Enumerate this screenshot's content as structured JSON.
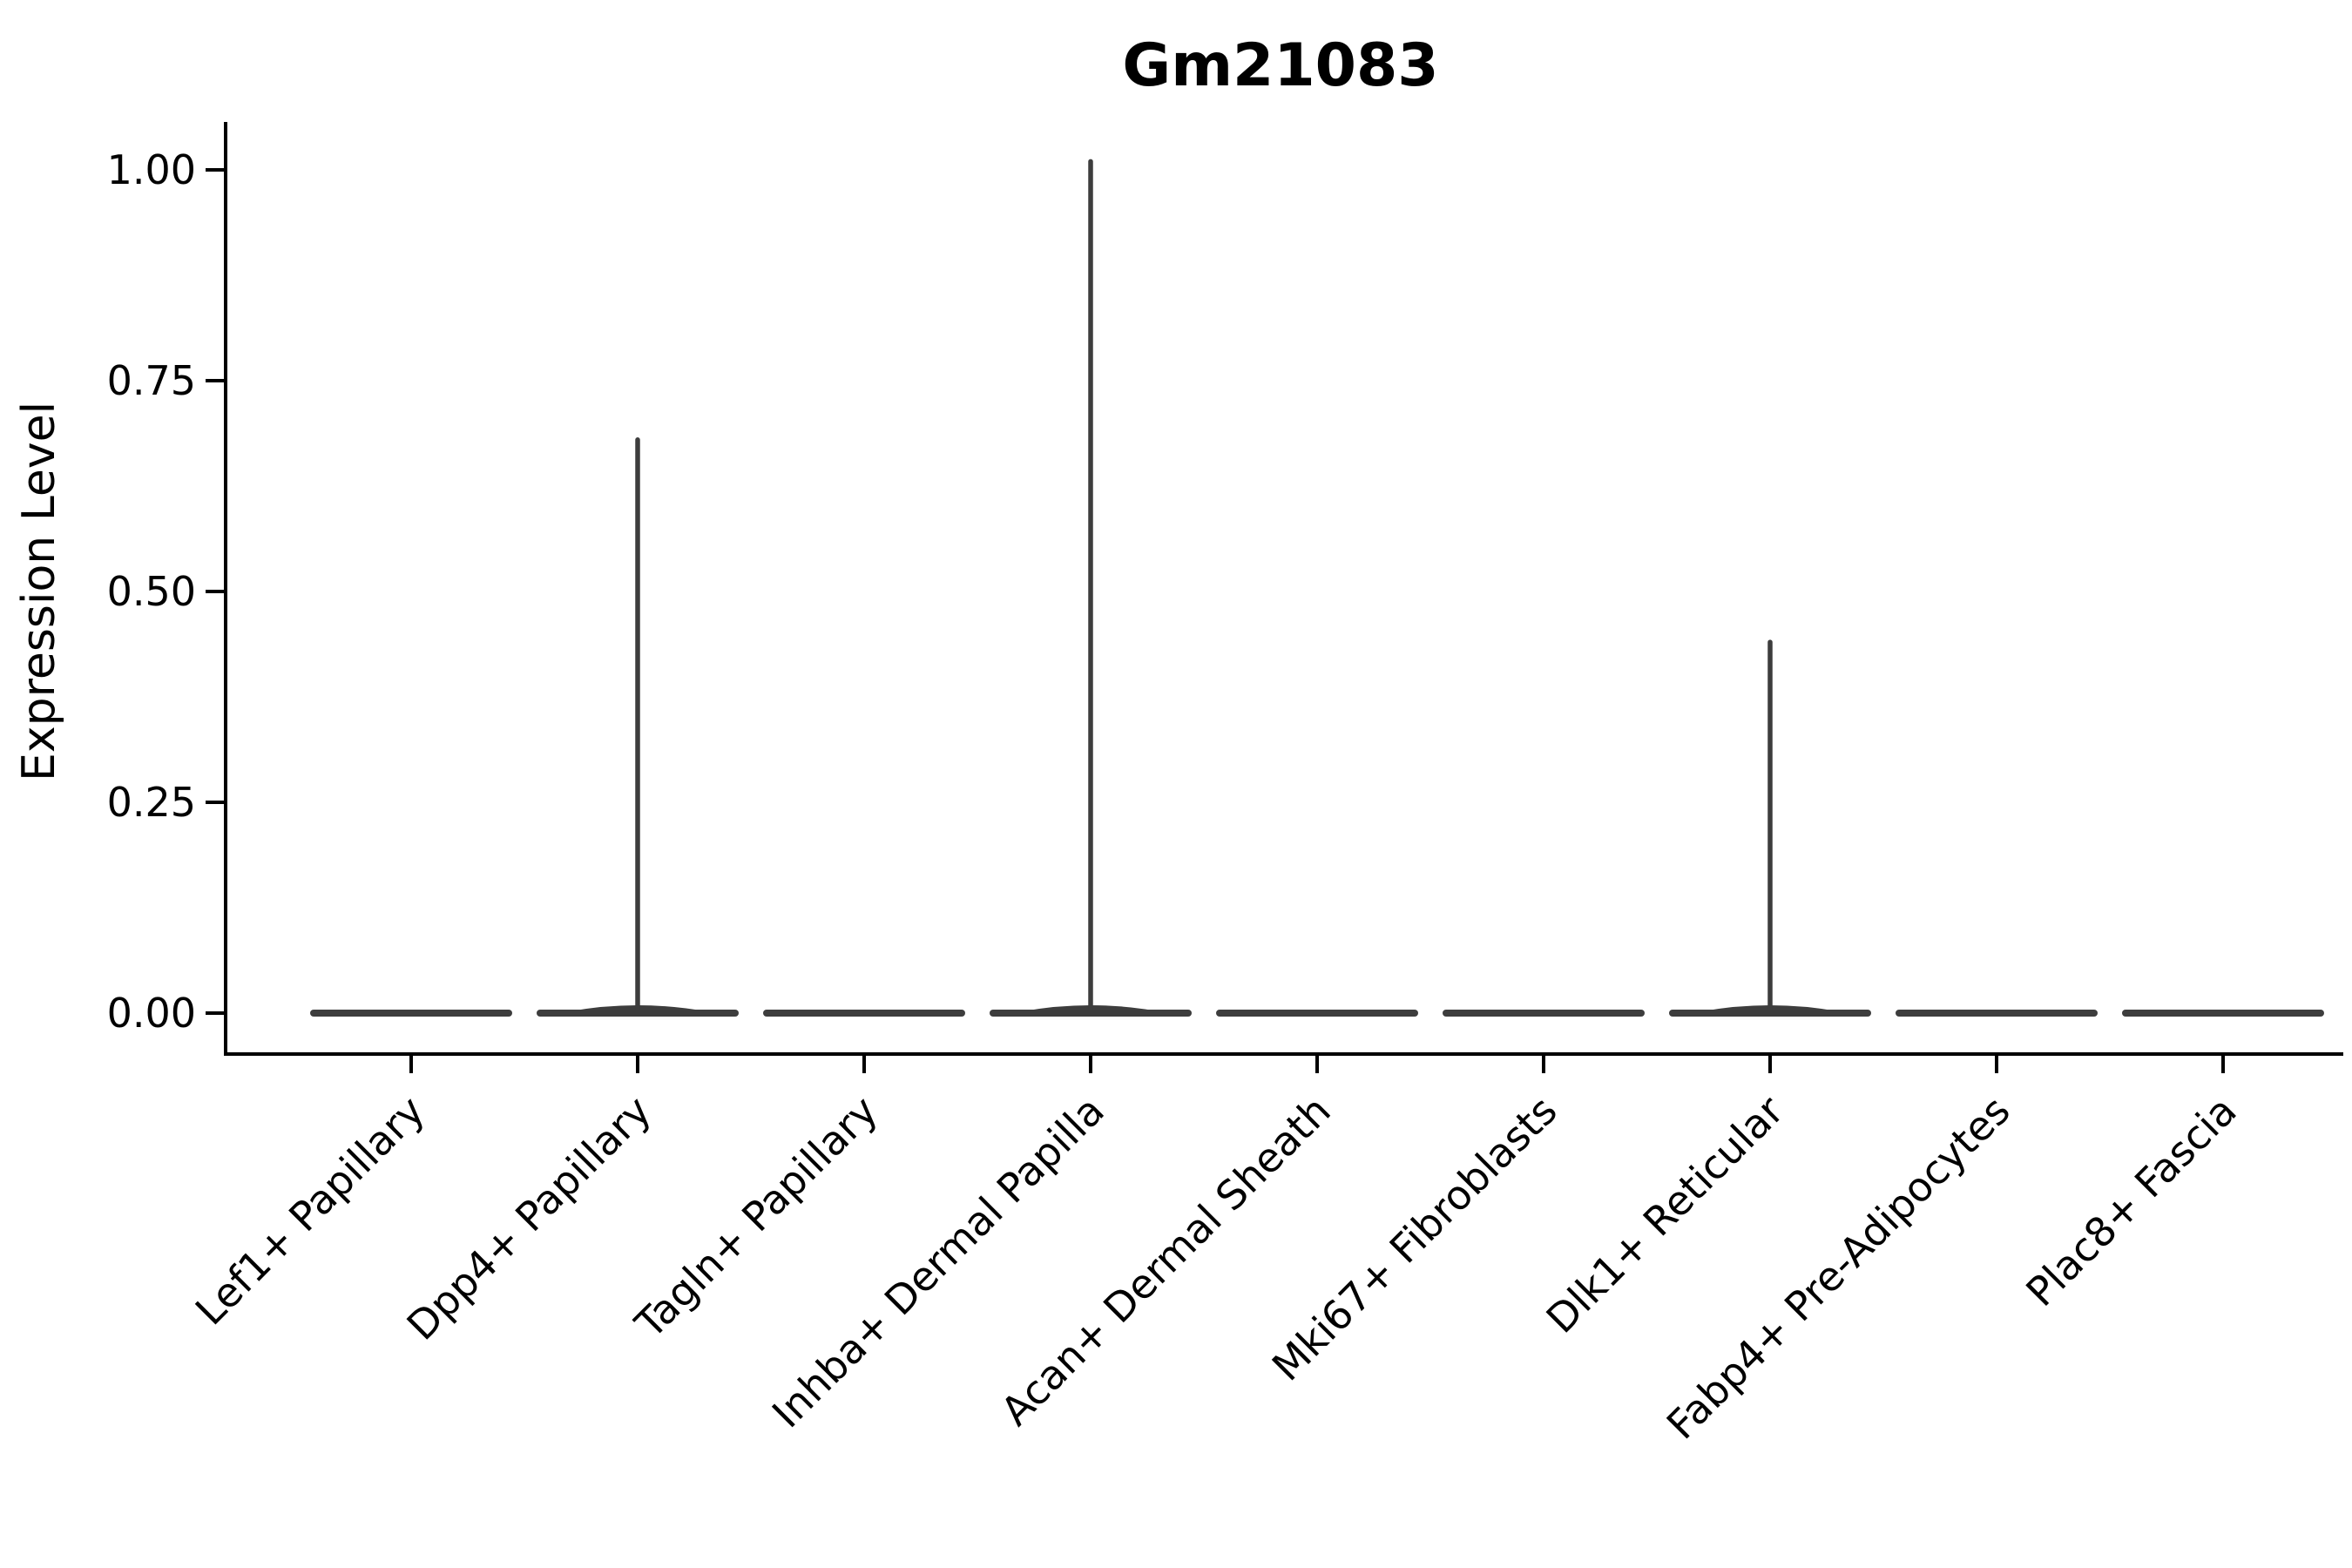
{
  "chart_data": {
    "type": "violin",
    "title": "Gm21083",
    "xlabel": "",
    "ylabel": "Expression Level",
    "categories": [
      "Lef1+ Papillary",
      "Dpp4+ Papillary",
      "Tagln+ Papillary",
      "Inhba+ Dermal Papilla",
      "Acan+ Dermal Sheath",
      "Mki67+ Fibroblasts",
      "Dlk1+ Reticular",
      "Fabp4+ Pre-Adipocytes",
      "Plac8+ Fascia"
    ],
    "series": [
      {
        "name": "violin_max_expression",
        "values": [
          0,
          0.68,
          0,
          1.01,
          0,
          0,
          0.44,
          0,
          0
        ]
      }
    ],
    "violin_baseline": 0.0,
    "yticks": [
      {
        "value": 0.0,
        "label": "0.00"
      },
      {
        "value": 0.25,
        "label": "0.25"
      },
      {
        "value": 0.5,
        "label": "0.50"
      },
      {
        "value": 0.75,
        "label": "0.75"
      },
      {
        "value": 1.0,
        "label": "1.00"
      }
    ],
    "ylim": [
      -0.05,
      1.06
    ],
    "grid": false,
    "legend_position": "none",
    "colors": {
      "violin": "#3d3d3d",
      "axis": "#000000",
      "text": "#000000",
      "background": "#ffffff"
    }
  }
}
